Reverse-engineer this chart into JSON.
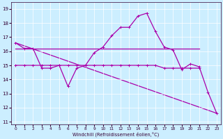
{
  "xlabel": "Windchill (Refroidissement éolien,°C)",
  "x": [
    0,
    1,
    2,
    3,
    4,
    5,
    6,
    7,
    8,
    9,
    10,
    11,
    12,
    13,
    14,
    15,
    16,
    17,
    18,
    19,
    20,
    21,
    22,
    23
  ],
  "line1": [
    16.6,
    16.2,
    16.2,
    14.8,
    14.8,
    15.0,
    13.5,
    14.8,
    15.0,
    15.9,
    16.3,
    17.1,
    17.7,
    17.7,
    18.5,
    18.7,
    17.4,
    16.3,
    16.1,
    14.7,
    15.1,
    14.9,
    13.1,
    11.6
  ],
  "line2_x": [
    0,
    1,
    2,
    3,
    4,
    5,
    6,
    7,
    8,
    9,
    10,
    11,
    12,
    13,
    14,
    15,
    16,
    17,
    18,
    19,
    20,
    21
  ],
  "line2_y": [
    15.0,
    15.0,
    15.0,
    15.0,
    15.0,
    15.0,
    15.0,
    15.0,
    15.0,
    15.0,
    15.0,
    15.0,
    15.0,
    15.0,
    15.0,
    15.0,
    15.0,
    14.8,
    14.8,
    14.8,
    14.8,
    14.8
  ],
  "line3_x": [
    0,
    1,
    2,
    3,
    4,
    5,
    6,
    7,
    8,
    9,
    10,
    11,
    12,
    13,
    14,
    15,
    16,
    17,
    18,
    19,
    20,
    21
  ],
  "line3_y": [
    16.2,
    16.2,
    16.2,
    16.2,
    16.2,
    16.2,
    16.2,
    16.2,
    16.2,
    16.2,
    16.2,
    16.2,
    16.2,
    16.2,
    16.2,
    16.2,
    16.2,
    16.2,
    16.2,
    16.2,
    16.2,
    16.2
  ],
  "line4_x": [
    0,
    23
  ],
  "line4_y": [
    16.6,
    11.6
  ],
  "line_color": "#aa00aa",
  "bg_color": "#cceeff",
  "ylim": [
    10.8,
    19.5
  ],
  "yticks": [
    11,
    12,
    13,
    14,
    15,
    16,
    17,
    18,
    19
  ],
  "xticks": [
    0,
    1,
    2,
    3,
    4,
    5,
    6,
    7,
    8,
    9,
    10,
    11,
    12,
    13,
    14,
    15,
    16,
    17,
    18,
    19,
    20,
    21,
    22,
    23
  ]
}
